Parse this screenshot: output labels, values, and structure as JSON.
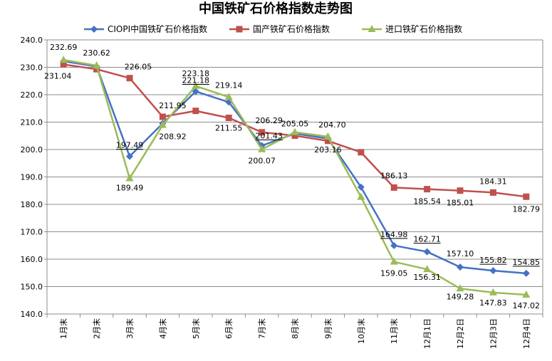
{
  "chart_data": {
    "type": "line",
    "title": "中国铁矿石价格指数走势图",
    "xlabel": "",
    "ylabel": "",
    "ylim": [
      140,
      240
    ],
    "yticks": [
      "140.0",
      "150.0",
      "160.0",
      "170.0",
      "180.0",
      "190.0",
      "200.0",
      "210.0",
      "220.0",
      "230.0",
      "240.0"
    ],
    "grid": true,
    "legend_position": "top",
    "categories": [
      "1月末",
      "2月末",
      "3月末",
      "4月末",
      "5月末",
      "6月末",
      "7月末",
      "8月末",
      "9月末",
      "10月末",
      "11月末",
      "12月1日",
      "12月2日",
      "12月3日",
      "12月4日"
    ],
    "series": [
      {
        "name": "CIOPI中国铁矿石价格指数",
        "color": "#4472C4",
        "marker": "diamond",
        "values": [
          232.2,
          230.3,
          197.49,
          209.5,
          221.18,
          217.3,
          201.43,
          205.8,
          204.0,
          186.3,
          164.98,
          162.71,
          157.1,
          155.82,
          154.85
        ]
      },
      {
        "name": "国产铁矿石价格指数",
        "color": "#C0504D",
        "marker": "square",
        "values": [
          231.04,
          229.3,
          226.05,
          211.95,
          214.1,
          211.55,
          206.29,
          205.05,
          203.16,
          199.0,
          186.13,
          185.54,
          185.01,
          184.31,
          182.79
        ]
      },
      {
        "name": "进口铁矿石价格指数",
        "color": "#9BBB59",
        "marker": "triangle",
        "values": [
          232.69,
          230.62,
          189.49,
          208.92,
          223.18,
          219.14,
          200.07,
          206.3,
          204.7,
          182.7,
          159.05,
          156.31,
          149.28,
          147.83,
          147.02
        ]
      }
    ],
    "data_labels": [
      {
        "series": 2,
        "index": 0,
        "text": "232.69",
        "underline": false
      },
      {
        "series": 1,
        "index": 0,
        "text": "231.04",
        "underline": false
      },
      {
        "series": 2,
        "index": 1,
        "text": "230.62",
        "underline": false
      },
      {
        "series": 1,
        "index": 2,
        "text": "226.05",
        "underline": false
      },
      {
        "series": 0,
        "index": 2,
        "text": "197.49",
        "underline": true
      },
      {
        "series": 2,
        "index": 2,
        "text": "189.49",
        "underline": false
      },
      {
        "series": 1,
        "index": 3,
        "text": "211.95",
        "underline": false
      },
      {
        "series": 2,
        "index": 3,
        "text": "208.92",
        "underline": false
      },
      {
        "series": 2,
        "index": 4,
        "text": "223.18",
        "underline": false
      },
      {
        "series": 0,
        "index": 4,
        "text": "221.18",
        "underline": true
      },
      {
        "series": 2,
        "index": 5,
        "text": "219.14",
        "underline": false
      },
      {
        "series": 1,
        "index": 5,
        "text": "211.55",
        "underline": false
      },
      {
        "series": 1,
        "index": 6,
        "text": "206.29",
        "underline": false
      },
      {
        "series": 0,
        "index": 6,
        "text": "201.43",
        "underline": true
      },
      {
        "series": 2,
        "index": 6,
        "text": "200.07",
        "underline": false
      },
      {
        "series": 1,
        "index": 7,
        "text": "205.05",
        "underline": false
      },
      {
        "series": 2,
        "index": 8,
        "text": "204.70",
        "underline": false
      },
      {
        "series": 1,
        "index": 8,
        "text": "203.16",
        "underline": false
      },
      {
        "series": 1,
        "index": 10,
        "text": "186.13",
        "underline": false
      },
      {
        "series": 0,
        "index": 10,
        "text": "164.98",
        "underline": true
      },
      {
        "series": 2,
        "index": 10,
        "text": "159.05",
        "underline": false
      },
      {
        "series": 1,
        "index": 11,
        "text": "185.54",
        "underline": false
      },
      {
        "series": 0,
        "index": 11,
        "text": "162.71",
        "underline": true
      },
      {
        "series": 2,
        "index": 11,
        "text": "156.31",
        "underline": false
      },
      {
        "series": 1,
        "index": 12,
        "text": "185.01",
        "underline": false
      },
      {
        "series": 0,
        "index": 12,
        "text": "157.10",
        "underline": false
      },
      {
        "series": 2,
        "index": 12,
        "text": "149.28",
        "underline": false
      },
      {
        "series": 1,
        "index": 13,
        "text": "184.31",
        "underline": false
      },
      {
        "series": 0,
        "index": 13,
        "text": "155.82",
        "underline": true
      },
      {
        "series": 2,
        "index": 13,
        "text": "147.83",
        "underline": false
      },
      {
        "series": 1,
        "index": 14,
        "text": "182.79",
        "underline": false
      },
      {
        "series": 0,
        "index": 14,
        "text": "154.85",
        "underline": true
      },
      {
        "series": 2,
        "index": 14,
        "text": "147.02",
        "underline": false
      }
    ]
  }
}
